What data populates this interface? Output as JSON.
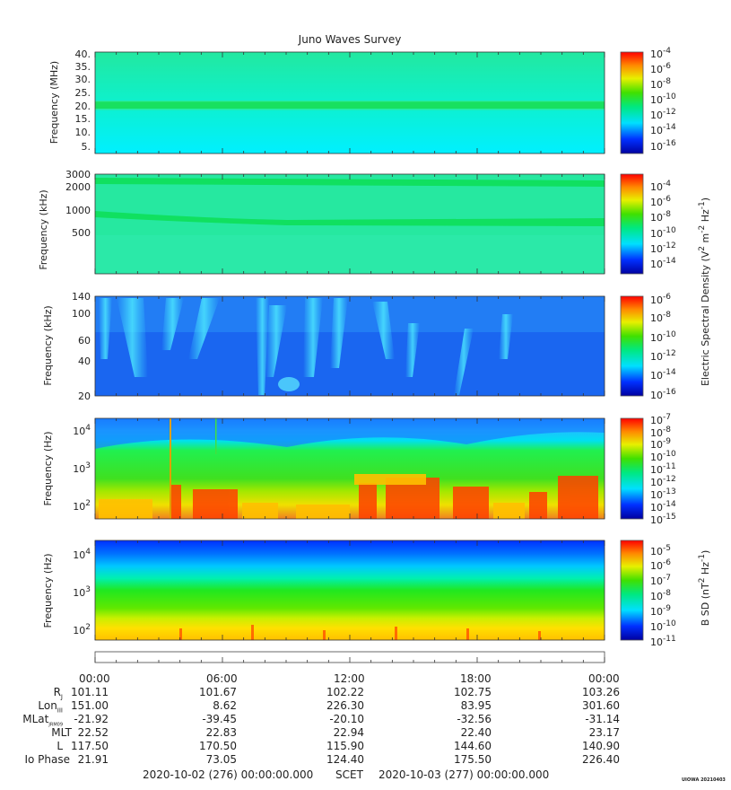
{
  "chart_data": [
    {
      "type": "heatmap",
      "title": "Juno Waves Survey",
      "ylabel": "Frequency (MHz)",
      "yticks": [
        "40.",
        "35.",
        "30.",
        "25.",
        "20.",
        "15.",
        "10.",
        "5."
      ],
      "ylim": [
        3.5,
        41
      ],
      "colorbar": {
        "ticks": [
          "10^-4",
          "10^-6",
          "10^-8",
          "10^-10",
          "10^-12",
          "10^-14",
          "10^-16"
        ]
      },
      "features": [
        {
          "band_center": 21,
          "level": "10^-12"
        }
      ],
      "background": "10^-13"
    },
    {
      "type": "heatmap",
      "ylabel": "Frequency (kHz)",
      "yticks": [
        "3000",
        "2000",
        "1000",
        "500"
      ],
      "colorbar": {
        "label": "Electric Spectral Density (V^2 m^-2 Hz^-1)",
        "ticks": [
          "10^-4",
          "10^-6",
          "10^-8",
          "10^-10",
          "10^-12",
          "10^-14"
        ]
      }
    },
    {
      "type": "heatmap",
      "ylabel": "Frequency (kHz)",
      "yticks": [
        "140",
        "100",
        "60",
        "40",
        "20"
      ],
      "colorbar": {
        "ticks": [
          "10^-6",
          "10^-8",
          "10^-10",
          "10^-12",
          "10^-14",
          "10^-16"
        ]
      }
    },
    {
      "type": "heatmap",
      "ylabel": "Frequency (Hz)",
      "yticks": [
        "10^4",
        "10^3",
        "10^2"
      ],
      "colorbar": {
        "ticks": [
          "10^-7",
          "10^-8",
          "10^-9",
          "10^-10",
          "10^-11",
          "10^-12",
          "10^-13",
          "10^-14",
          "10^-15"
        ]
      }
    },
    {
      "type": "heatmap",
      "ylabel": "Frequency (Hz)",
      "yticks": [
        "10^4",
        "10^3",
        "10^2"
      ],
      "colorbar": {
        "label": "B SD (nT^2 Hz^-1)",
        "ticks": [
          "10^-5",
          "10^-6",
          "10^-7",
          "10^-8",
          "10^-9",
          "10^-10",
          "10^-11"
        ]
      }
    }
  ],
  "xaxis": {
    "ticks": [
      "00:00",
      "06:00",
      "12:00",
      "18:00",
      "00:00"
    ]
  },
  "ephemeris": [
    {
      "label": "R",
      "sub": "J",
      "values": [
        "101.11",
        "101.67",
        "102.22",
        "102.75",
        "103.26"
      ]
    },
    {
      "label": "Lon",
      "sub": "III",
      "values": [
        "151.00",
        "8.62",
        "226.30",
        "83.95",
        "301.60"
      ]
    },
    {
      "label": "MLat",
      "sub": "JRM09",
      "values": [
        "-21.92",
        "-39.45",
        "-20.10",
        "-32.56",
        "-31.14"
      ]
    },
    {
      "label": "MLT",
      "sub": "",
      "values": [
        "22.52",
        "22.83",
        "22.94",
        "22.40",
        "23.17"
      ]
    },
    {
      "label": "L",
      "sub": "",
      "values": [
        "117.50",
        "170.50",
        "115.90",
        "144.60",
        "140.90"
      ]
    },
    {
      "label": "Io Phase",
      "sub": "",
      "values": [
        "21.91",
        "73.05",
        "124.40",
        "175.50",
        "226.40"
      ]
    }
  ],
  "footer": {
    "start": "2020-10-02 (276) 00:00:00.000",
    "scet": "SCET",
    "end": "2020-10-03 (277) 00:00:00.000",
    "stamp": "UIOWA 20210403"
  }
}
